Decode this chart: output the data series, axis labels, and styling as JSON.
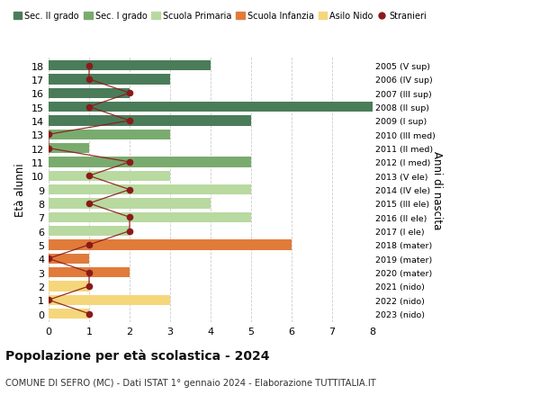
{
  "ages": [
    18,
    17,
    16,
    15,
    14,
    13,
    12,
    11,
    10,
    9,
    8,
    7,
    6,
    5,
    4,
    3,
    2,
    1,
    0
  ],
  "right_labels": [
    "2005 (V sup)",
    "2006 (IV sup)",
    "2007 (III sup)",
    "2008 (II sup)",
    "2009 (I sup)",
    "2010 (III med)",
    "2011 (II med)",
    "2012 (I med)",
    "2013 (V ele)",
    "2014 (IV ele)",
    "2015 (III ele)",
    "2016 (II ele)",
    "2017 (I ele)",
    "2018 (mater)",
    "2019 (mater)",
    "2020 (mater)",
    "2021 (nido)",
    "2022 (nido)",
    "2023 (nido)"
  ],
  "bar_values": [
    4,
    3,
    2,
    8,
    5,
    3,
    1,
    5,
    3,
    5,
    4,
    5,
    2,
    6,
    1,
    2,
    1,
    3,
    1
  ],
  "bar_colors": [
    "#4a7c59",
    "#4a7c59",
    "#4a7c59",
    "#4a7c59",
    "#4a7c59",
    "#7aab6e",
    "#7aab6e",
    "#7aab6e",
    "#b8d9a0",
    "#b8d9a0",
    "#b8d9a0",
    "#b8d9a0",
    "#b8d9a0",
    "#e07b3a",
    "#e07b3a",
    "#e07b3a",
    "#f5d67a",
    "#f5d67a",
    "#f5d67a"
  ],
  "stranieri_values": [
    1,
    1,
    2,
    1,
    2,
    0,
    0,
    2,
    1,
    2,
    1,
    2,
    2,
    1,
    0,
    1,
    1,
    0,
    1
  ],
  "stranieri_color": "#8b1a1a",
  "legend_labels": [
    "Sec. II grado",
    "Sec. I grado",
    "Scuola Primaria",
    "Scuola Infanzia",
    "Asilo Nido",
    "Stranieri"
  ],
  "legend_colors": [
    "#4a7c59",
    "#7aab6e",
    "#b8d9a0",
    "#e07b3a",
    "#f5d67a",
    "#8b1a1a"
  ],
  "title": "Popolazione per età scolastica - 2024",
  "subtitle": "COMUNE DI SEFRO (MC) - Dati ISTAT 1° gennaio 2024 - Elaborazione TUTTITALIA.IT",
  "ylabel": "Età alunni",
  "right_ylabel": "Anni di nascita",
  "xlim": [
    0,
    8
  ],
  "xticks": [
    0,
    1,
    2,
    3,
    4,
    5,
    6,
    7,
    8
  ],
  "bg_color": "#ffffff",
  "grid_color": "#cccccc"
}
